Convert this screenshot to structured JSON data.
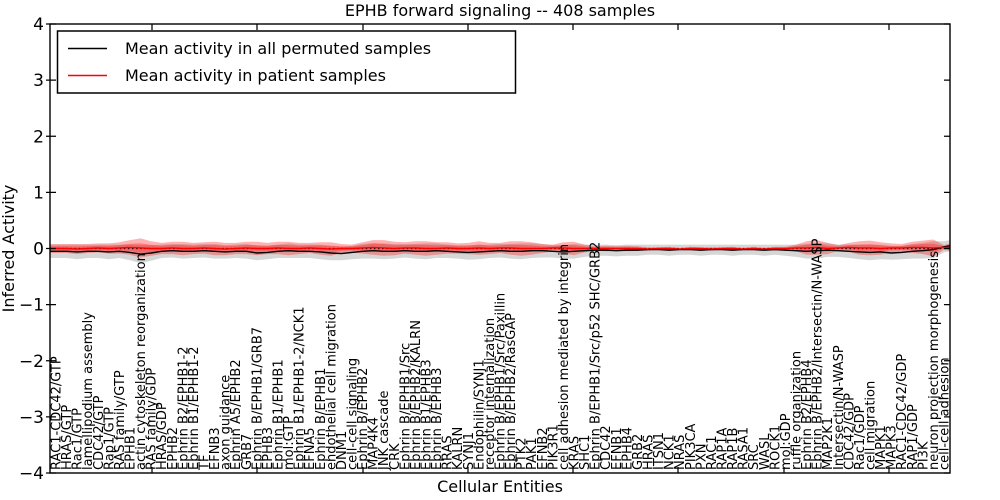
{
  "title": "EPHB forward signaling -- 408 samples",
  "legend": {
    "position": "upper left",
    "entries": [
      {
        "label": "Mean activity in all permuted samples",
        "color": "#000000"
      },
      {
        "label": "Mean activity in patient samples",
        "color": "#ff0000"
      }
    ]
  },
  "colors": {
    "patient_line": "#ff0000",
    "permuted_line": "#000000",
    "patient_band": "rgba(255,0,0,0.30)",
    "permuted_band": "rgba(0,0,0,0.16)",
    "zero_line": "#000000",
    "frame": "#000000",
    "background": "#ffffff"
  },
  "chart_data": {
    "type": "line",
    "title": "EPHB forward signaling -- 408 samples",
    "xlabel": "Cellular Entities",
    "ylabel": "Inferred Activity",
    "ylim": [
      -4,
      4
    ],
    "ytick_labels": [
      "4",
      "3",
      "2",
      "1",
      "0",
      "−1",
      "−2",
      "−3",
      "−4"
    ],
    "ytick_values": [
      4,
      3,
      2,
      1,
      0,
      -1,
      -2,
      -3,
      -4
    ],
    "grid": false,
    "zero_line_style": "dotted",
    "legend_position": "upper left",
    "categories": [
      "RAC1-CDC42/GTP",
      "HRAS/GTP",
      "Rac1/GTP",
      "lamellipodium assembly",
      "CDC42/GTP",
      "Rap1/GTP",
      "RAS family/GTP",
      "EPHB1",
      "actin cytoskeleton reorganization",
      "RAS family/GDP",
      "HRAS/GDP",
      "EPHB2",
      "Ephrin B2/EPHB1-2",
      "Ephrin B1/EPHB1-2",
      "TF",
      "EFNB3",
      "axon guidance",
      "Ephrin A5/EPHB2",
      "GRB7",
      "Ephrin B/EPHB1/GRB7",
      "EPHB3",
      "Ephrin B1/EPHB1",
      "mol:GTP",
      "Ephrin B1/EPHB1-2/NCK1",
      "EFNA5",
      "Ephrin B/EPHB1",
      "endothelial cell migration",
      "DNM1",
      "cell-cell signaling",
      "Ephrin B/EPHB2",
      "MAP4K4",
      "JNK cascade",
      "CRK",
      "Ephrin B/EPHB1/Src",
      "Ephrin B/EPHB2/KALRN",
      "Ephrin B1/EPHB3",
      "Ephrin B/EPHB3",
      "RRAS",
      "KALRN",
      "SYNJ1",
      "Endophilin/SYNJ1",
      "receptor internalization",
      "Ephrin B/EPHB1/Src/Paxillin",
      "Ephrin B/EPHB2/RasGAP",
      "PTK2",
      "PAK1",
      "EFNB2",
      "PIK3R1",
      "cell adhesion mediated by integrin",
      "KRAS",
      "SHC1",
      "Ephrin B/EPHB1/Src/p52 SHC/GRB2",
      "CDC42",
      "EFNB1",
      "EPHB4",
      "GRB2",
      "HRAS",
      "ITSN1",
      "NCK1",
      "NRAS",
      "PIK3CA",
      "PXN",
      "RAC1",
      "RAP1A",
      "RAP1B",
      "RASA1",
      "SRC",
      "WASL",
      "ROCK1",
      "mol:GDP",
      "ruffle organization",
      "Ephrin B2/EPHB4",
      "Ephrin B/EPHB2/Intersectin/N-WASP",
      "MAP2K1",
      "Intersectin/N-WASP",
      "CDC42/GDP",
      "Rac1/GDP",
      "cell migration",
      "MAPK1",
      "MAPK3",
      "RAC1-CDC42/GDP",
      "RAP1/GDP",
      "PI3K",
      "neuron projection morphogenesis",
      "cell-cell adhesion"
    ],
    "series": [
      {
        "name": "Mean activity in all permuted samples",
        "color": "#000000",
        "values": [
          -0.05,
          -0.05,
          -0.06,
          -0.05,
          -0.05,
          -0.06,
          -0.05,
          -0.07,
          -0.1,
          -0.08,
          -0.05,
          -0.04,
          -0.05,
          -0.05,
          -0.04,
          -0.05,
          -0.06,
          -0.05,
          -0.05,
          -0.08,
          -0.07,
          -0.05,
          -0.04,
          -0.05,
          -0.05,
          -0.06,
          -0.08,
          -0.09,
          -0.07,
          -0.05,
          -0.04,
          -0.05,
          -0.05,
          -0.04,
          -0.05,
          -0.05,
          -0.04,
          -0.05,
          -0.06,
          -0.07,
          -0.06,
          -0.05,
          -0.04,
          -0.05,
          -0.05,
          -0.04,
          -0.04,
          -0.05,
          -0.06,
          -0.05,
          -0.04,
          -0.03,
          -0.03,
          -0.04,
          -0.03,
          -0.03,
          -0.02,
          -0.02,
          -0.03,
          -0.02,
          -0.02,
          -0.03,
          -0.02,
          -0.02,
          -0.03,
          -0.02,
          -0.02,
          -0.03,
          -0.02,
          -0.03,
          -0.04,
          -0.05,
          -0.04,
          -0.03,
          -0.04,
          -0.05,
          -0.06,
          -0.07,
          -0.06,
          -0.08,
          -0.07,
          -0.05,
          -0.04,
          -0.02,
          0.03
        ],
        "band_halfwidth": [
          0.12,
          0.12,
          0.13,
          0.12,
          0.12,
          0.13,
          0.12,
          0.14,
          0.16,
          0.14,
          0.12,
          0.12,
          0.13,
          0.12,
          0.12,
          0.13,
          0.12,
          0.12,
          0.13,
          0.13,
          0.12,
          0.12,
          0.13,
          0.12,
          0.12,
          0.13,
          0.13,
          0.12,
          0.12,
          0.13,
          0.14,
          0.14,
          0.13,
          0.12,
          0.13,
          0.14,
          0.13,
          0.12,
          0.12,
          0.13,
          0.13,
          0.12,
          0.12,
          0.13,
          0.14,
          0.13,
          0.12,
          0.11,
          0.12,
          0.13,
          0.11,
          0.1,
          0.1,
          0.1,
          0.1,
          0.1,
          0.09,
          0.09,
          0.1,
          0.09,
          0.09,
          0.1,
          0.09,
          0.09,
          0.1,
          0.09,
          0.09,
          0.1,
          0.09,
          0.1,
          0.11,
          0.13,
          0.14,
          0.12,
          0.11,
          0.12,
          0.13,
          0.14,
          0.13,
          0.12,
          0.12,
          0.13,
          0.14,
          0.15,
          0.1
        ]
      },
      {
        "name": "Mean activity in patient samples",
        "color": "#ff0000",
        "values": [
          0,
          0,
          -0.01,
          0,
          0.01,
          0,
          0.01,
          0.02,
          0.01,
          0,
          0,
          0.01,
          0,
          0,
          0.01,
          0,
          -0.01,
          0,
          0.01,
          0,
          0,
          0.01,
          0,
          0,
          0.01,
          0,
          -0.01,
          0,
          0,
          0.01,
          0.02,
          0.01,
          0,
          0.01,
          0.01,
          0,
          0,
          0.01,
          0,
          0,
          0.01,
          0,
          0.01,
          0.01,
          0,
          0,
          0,
          0.01,
          0.01,
          0,
          0,
          0,
          0,
          0,
          0,
          0,
          -0.01,
          0,
          0,
          -0.01,
          0,
          0,
          -0.01,
          0,
          0,
          -0.01,
          0,
          -0.01,
          0,
          0,
          0.01,
          0.01,
          0.02,
          0,
          0.01,
          0.02,
          0.01,
          0.01,
          0,
          0.01,
          0.01,
          0.02,
          0.02,
          0.01,
          0.02
        ],
        "band_halfwidth": [
          0.08,
          0.08,
          0.09,
          0.08,
          0.08,
          0.09,
          0.1,
          0.13,
          0.17,
          0.13,
          0.1,
          0.11,
          0.12,
          0.1,
          0.1,
          0.12,
          0.11,
          0.1,
          0.11,
          0.12,
          0.1,
          0.11,
          0.12,
          0.1,
          0.09,
          0.11,
          0.12,
          0.08,
          0.07,
          0.1,
          0.13,
          0.14,
          0.12,
          0.1,
          0.12,
          0.13,
          0.11,
          0.1,
          0.09,
          0.1,
          0.12,
          0.1,
          0.09,
          0.12,
          0.13,
          0.11,
          0.08,
          0.06,
          0.1,
          0.12,
          0.07,
          0.04,
          0.05,
          0.04,
          0.05,
          0.04,
          0.03,
          0.02,
          0.03,
          0.02,
          0.03,
          0.02,
          0.03,
          0.02,
          0.03,
          0.02,
          0.03,
          0.02,
          0.03,
          0.03,
          0.06,
          0.12,
          0.13,
          0.1,
          0.05,
          0.08,
          0.12,
          0.13,
          0.11,
          0.08,
          0.07,
          0.1,
          0.12,
          0.15,
          0.04
        ]
      }
    ]
  }
}
